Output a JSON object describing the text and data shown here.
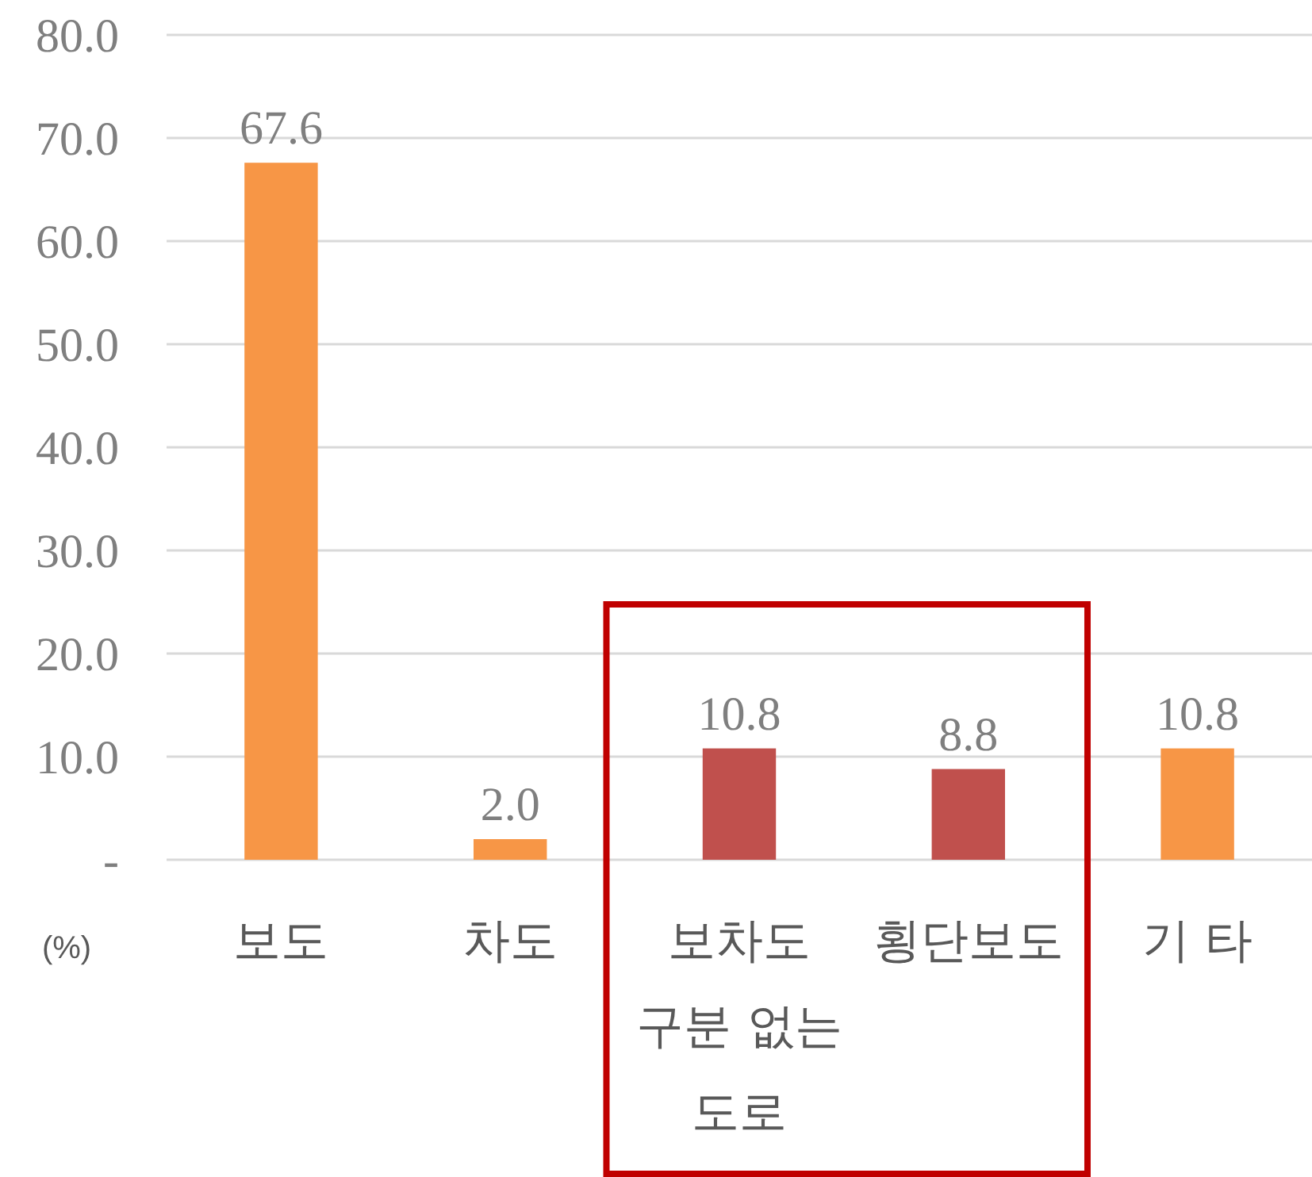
{
  "chart_data": {
    "type": "bar",
    "categories": [
      "보도",
      "차도",
      "보차도 구분 없는 도로",
      "횡단보도",
      "기 타"
    ],
    "values": [
      67.6,
      2.0,
      10.8,
      8.8,
      10.8
    ],
    "colors": [
      "#f79646",
      "#f79646",
      "#c0504d",
      "#c0504d",
      "#f79646"
    ],
    "ylabel": "(%)",
    "ylim": [
      0,
      80
    ],
    "yticks": [
      {
        "value": 0,
        "label": "-"
      },
      {
        "value": 10,
        "label": "10.0"
      },
      {
        "value": 20,
        "label": "20.0"
      },
      {
        "value": 30,
        "label": "30.0"
      },
      {
        "value": 40,
        "label": "40.0"
      },
      {
        "value": 50,
        "label": "50.0"
      },
      {
        "value": 60,
        "label": "60.0"
      },
      {
        "value": 70,
        "label": "70.0"
      },
      {
        "value": 80,
        "label": "80.0"
      }
    ],
    "grid": "y",
    "value_labels": [
      "67.6",
      "2.0",
      "10.8",
      "8.8",
      "10.8"
    ]
  }
}
